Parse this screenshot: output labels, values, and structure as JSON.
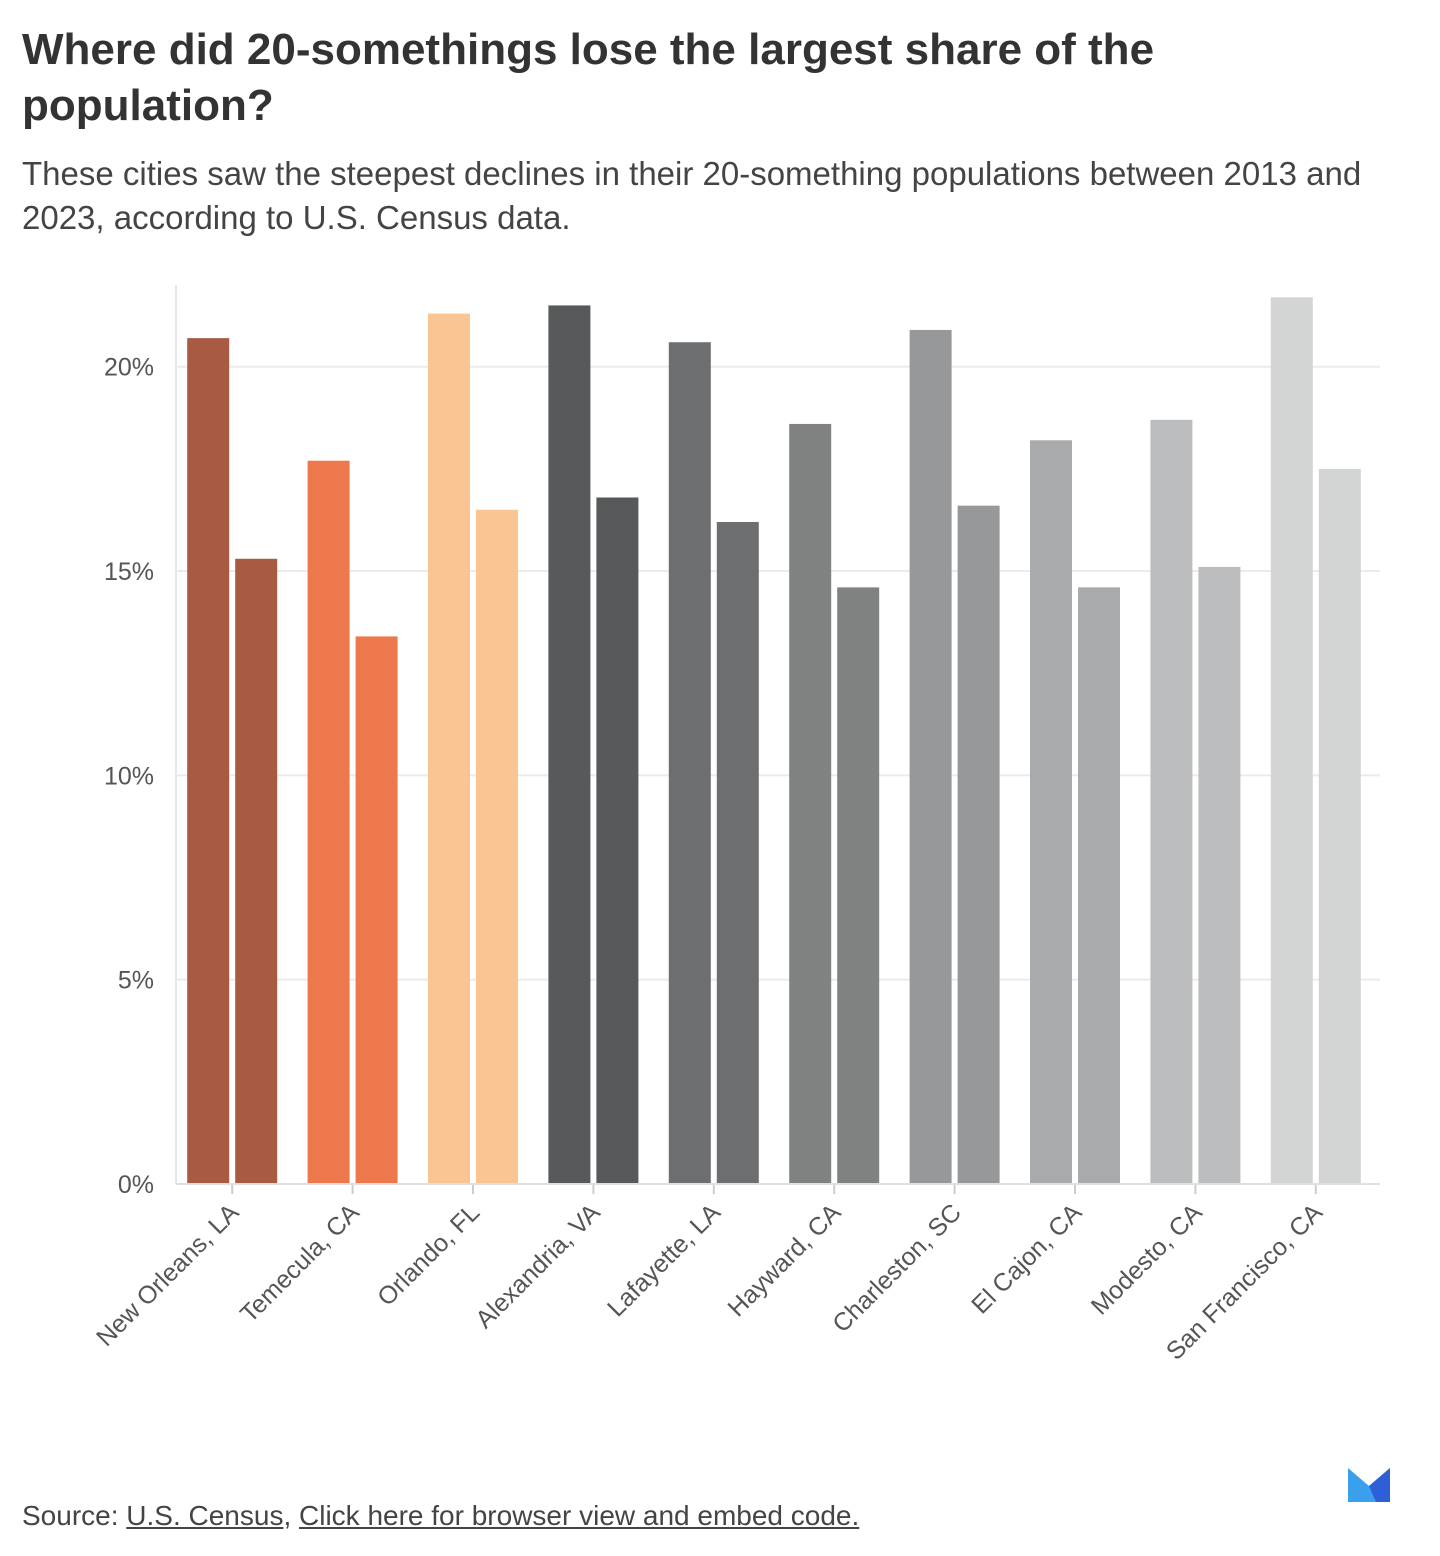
{
  "title": "Where did 20-somethings lose the largest share of the population?",
  "subtitle": "These cities saw the steepest declines in their 20-something populations between 2013 and 2023, according to U.S. Census data.",
  "footer": {
    "source_label": "Source:",
    "source_link": "U.S. Census",
    "separator": ",",
    "embed_link": "Click here for browser view and embed code."
  },
  "logo": "Axios-style M logo",
  "chart_data": {
    "type": "bar",
    "title": "Where did 20-somethings lose the largest share of the population?",
    "xlabel": "",
    "ylabel": "",
    "ylim": [
      0,
      22
    ],
    "yticks": [
      0,
      5,
      10,
      15,
      20
    ],
    "ytick_labels": [
      "0%",
      "5%",
      "10%",
      "15%",
      "20%"
    ],
    "grid": true,
    "legend": "none",
    "categories": [
      "New Orleans, LA",
      "Temecula, CA",
      "Orlando, FL",
      "Alexandria, VA",
      "Lafayette, LA",
      "Hayward, CA",
      "Charleston, SC",
      "El Cajon, CA",
      "Modesto, CA",
      "San Francisco, CA"
    ],
    "series": [
      {
        "values": [
          20.7,
          17.7,
          21.3,
          21.5,
          20.6,
          18.6,
          20.9,
          18.2,
          18.7,
          21.7
        ]
      },
      {
        "values": [
          15.3,
          13.4,
          16.5,
          16.8,
          16.2,
          14.6,
          16.6,
          14.6,
          15.1,
          17.5
        ]
      }
    ],
    "colors": [
      "#a85a43",
      "#ec784b",
      "#fac493",
      "#58595b",
      "#6d6e70",
      "#808181",
      "#979899",
      "#a9aaab",
      "#bcbdbe",
      "#d3d4d4"
    ]
  }
}
